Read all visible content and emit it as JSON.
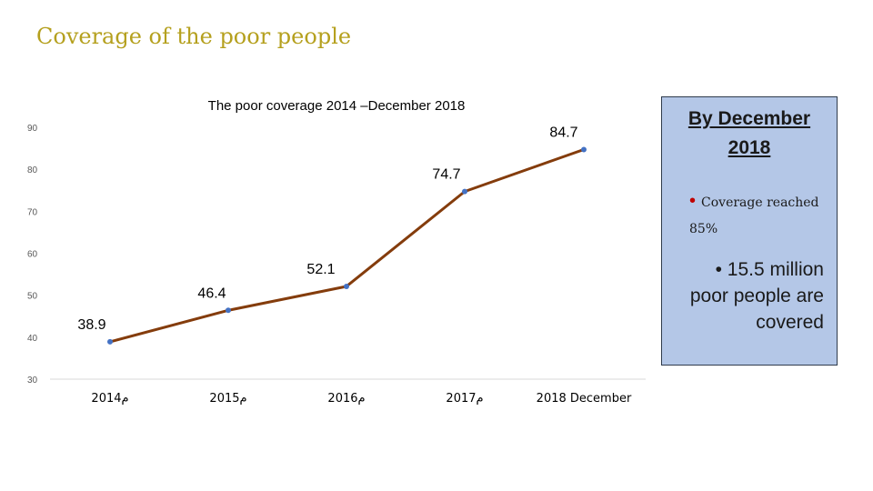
{
  "slide": {
    "title": "Coverage of the poor people"
  },
  "chart_data": {
    "type": "line",
    "title": "The poor coverage 2014 –December 2018",
    "categories": [
      "2014م",
      "2015م",
      "2016م",
      "2017م",
      "2018 December"
    ],
    "series": [
      {
        "values": [
          38.9,
          46.4,
          52.1,
          74.7,
          84.7
        ]
      }
    ],
    "value_labels": [
      "38.9",
      "46.4",
      "52.1",
      "74.7",
      "84.7"
    ],
    "y_ticks": [
      "30",
      "40",
      "50",
      "60",
      "70",
      "80",
      "90"
    ],
    "ylim": [
      30,
      90
    ],
    "grid": false,
    "line_color": "#843c0c",
    "marker_color": "#4472c4"
  },
  "side_box": {
    "heading": "By December 2018",
    "bullet1_marker": "•",
    "bullet1_line1": "Coverage reached",
    "bullet1_line2": "85%",
    "bullet2": "•  15.5 million poor people are covered",
    "background": "#b4c7e7"
  }
}
